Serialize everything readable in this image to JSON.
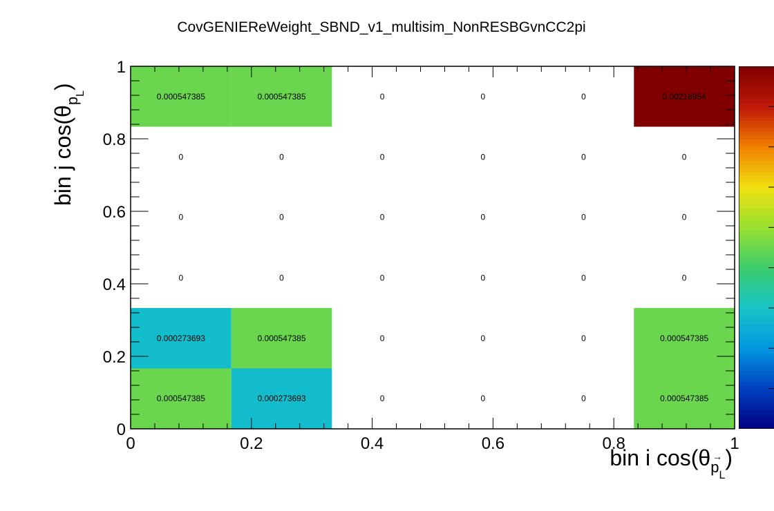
{
  "chart_data": {
    "type": "heatmap",
    "title": "CovGENIEReWeight_SBND_v1_multisim_NonRESBGvnCC2pi",
    "xlabel": "bin i cos(θ",
    "xlabel_sub": "p",
    "xlabel_sub2": "L",
    "xlabel_close": ")",
    "ylabel": "bin j cos(θ",
    "ylabel_sub": "p",
    "ylabel_sub2": "L",
    "ylabel_close": ")",
    "x_edges": [
      0,
      0.1667,
      0.3333,
      0.5,
      0.6667,
      0.8333,
      1
    ],
    "y_edges": [
      0,
      0.1667,
      0.3333,
      0.5,
      0.6667,
      0.8333,
      1
    ],
    "xlim": [
      0,
      1
    ],
    "ylim": [
      0,
      1
    ],
    "x_ticks": [
      "0",
      "0.2",
      "0.4",
      "0.6",
      "0.8",
      "1"
    ],
    "y_ticks": [
      "0",
      "0.2",
      "0.4",
      "0.6",
      "0.8",
      "1"
    ],
    "zlim": [
      0,
      0.00218954
    ],
    "values": [
      [
        0.000547385,
        0.000273693,
        0,
        0,
        0,
        0.000547385
      ],
      [
        0.000273693,
        0.000547385,
        0,
        0,
        0,
        0.000547385
      ],
      [
        0,
        0,
        0,
        0,
        0,
        0
      ],
      [
        0,
        0,
        0,
        0,
        0,
        0
      ],
      [
        0,
        0,
        0,
        0,
        0,
        0
      ],
      [
        0.000547385,
        0.000547385,
        0,
        0,
        0,
        0.00218954
      ]
    ],
    "labels": [
      [
        "0.000547385",
        "0.000273693",
        "0",
        "0",
        "0",
        "0.000547385"
      ],
      [
        "0.000273693",
        "0.000547385",
        "0",
        "0",
        "0",
        "0.000547385"
      ],
      [
        "0",
        "0",
        "0",
        "0",
        "0",
        "0"
      ],
      [
        "0",
        "0",
        "0",
        "0",
        "0",
        "0"
      ],
      [
        "0",
        "0",
        "0",
        "0",
        "0",
        "0"
      ],
      [
        "0.000547385",
        "0.000547385",
        "0",
        "0",
        "0",
        "0.00218954"
      ]
    ],
    "colormap": [
      "#000080",
      "#0040c0",
      "#0096e0",
      "#18c4c8",
      "#3ccc6c",
      "#98e030",
      "#f0e010",
      "#f08000",
      "#c01808",
      "#800000"
    ]
  }
}
